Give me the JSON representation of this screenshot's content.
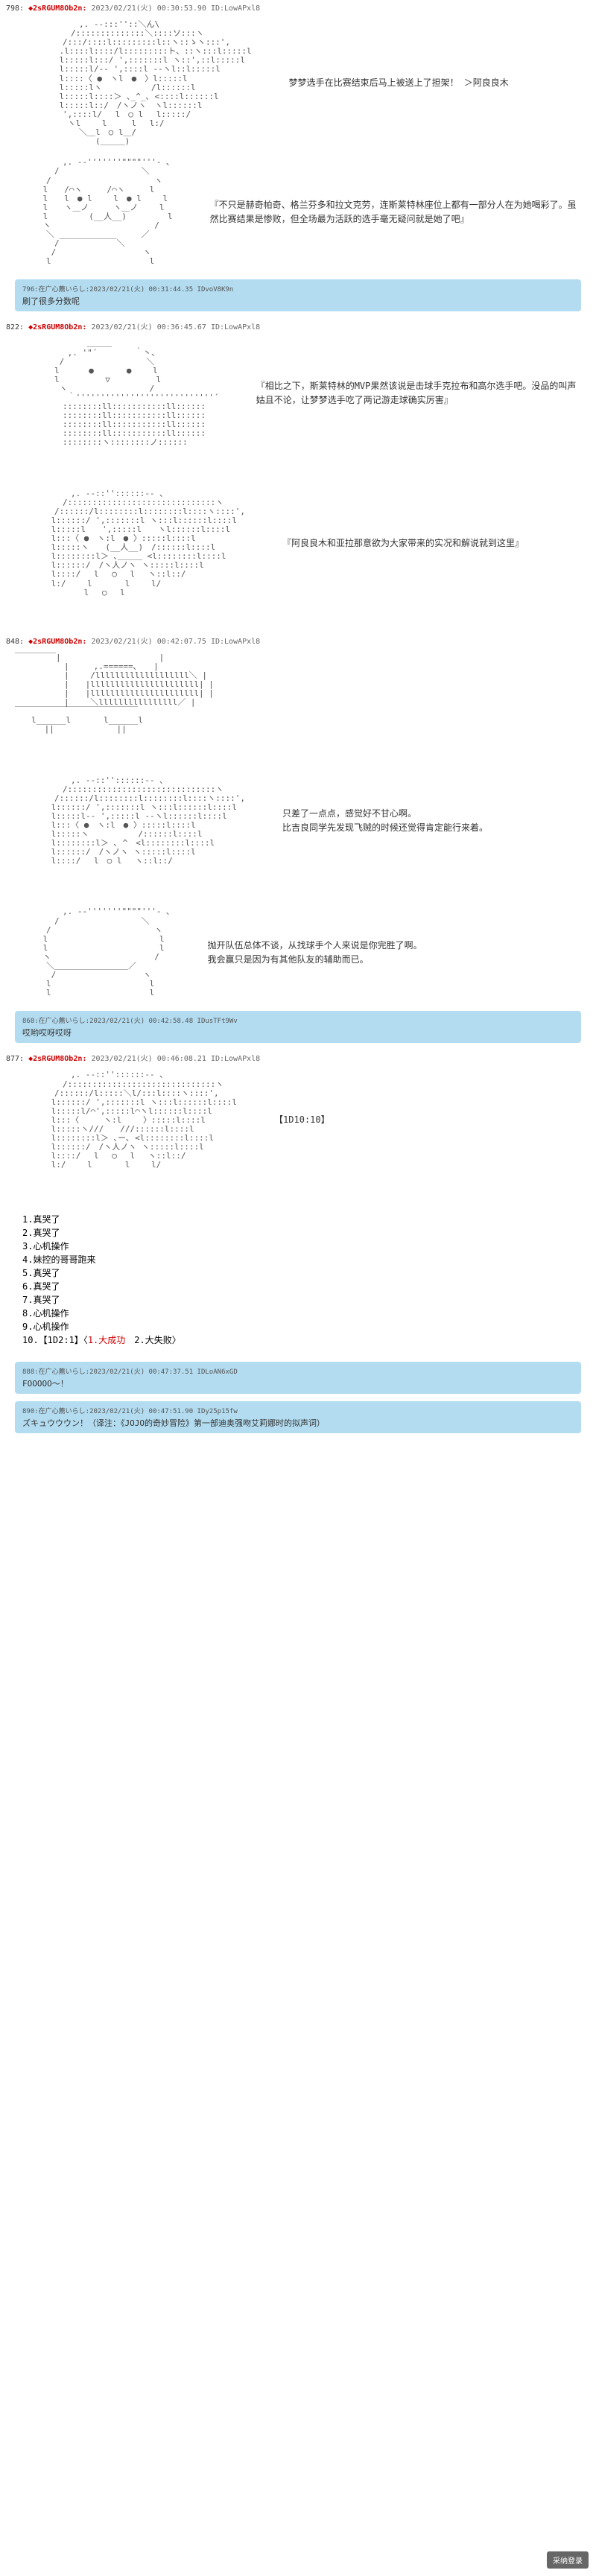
{
  "posts": [
    {
      "num": "798:",
      "id": "◆2sRGUM8Ob2n:",
      "ts": "2023/02/21(火) 00:30:53.90 ID:LowAPxl8",
      "aa": "　　　　　　,. -‐:::''::＼ん\\\n　　　　　/::::::::::::::＼::::ソ:::ヽ\n　　　　/:::/::::l:::::::::l::ヽ::ゝヽ:::',\n　　　 .l::::l::::/l:::::::::ト、::ヽ:::l:::::l\n　　　 l:::::l:::/ ',:::::::l ヽ::',::l:::::l\n　　　 l:::::l/‐- ',::::l -‐ヽl::l:::::l\n　　　 l::::〈 ●　ヽl　●　〉l:::::l\n　　　 l:::::lヽ　　　　　　/l::::::l\n　　　 l:::::l::::＞ ､_^_､ <::::l::::::l\n　　　 l:::::l::/　/ヽノヽ　ヽl::::::l\n　　　　',::::l/　 l　○ l　 l:::::/\n　　　　 ヽl　　 l　　　l　 l:/\n　　　　　　＼＿l　○ l＿/\n　　　　　　　　(＿＿＿)",
      "text": "梦梦选手在比赛结束后马上被送上了担架！ ＞阿良良木"
    },
    {
      "aa": "　　　　,. -‐'''''''\"\"\"\"'''- ､\n　　　/　　　　　　　　　　＼\n　　/　　　　　　　　　　　　 ヽ\n　 l　　/⌒ヽ　　　/⌒ヽ　　　l\n　 l　　l　● l　　 l　● l　　 l\n　 l　　ヽ＿ノ　　　ヽ＿ノ　　 l\n　 l　　　　　(__人__)　　　　　l\n　 ヽ　　　　　　　　　　　　 /\n　　＼　　　　　　　　　　 ／\n　　　/￣￣￣￣￣￣￣＼\n　　 /　　　　　　　　　　 ヽ\n　　l　　　　　　　　　　　　l",
      "text": "『不只是赫奇帕奇、格兰芬多和拉文克劳，连斯莱特林座位上都有一部分人在为她喝彩了。虽然比赛结果是惨败，但全场最为活跃的选手毫无疑问就是她了吧』"
    }
  ],
  "reply1": {
    "header": "796:在广心薦いらし:2023/02/21(火) 00:31:44.35 IDvoV8K9n",
    "text": "刷了很多分数呢"
  },
  "post2_header": {
    "num": "822:",
    "id": "◆2sRGUM8Ob2n:",
    "ts": "2023/02/21(火) 00:36:45.67 ID:LowAPxl8"
  },
  "post2_blocks": [
    {
      "aa": "　　　　　　　＿＿＿\n　　　 　,. '\"´　　　　 ｀丶、\n　　　 /　　　　　　　　　　＼\n　　　l　　　 ●　　　　●　　 l\n　　　l　　　　　 ▽　　　　　 l\n　　　 ヽ　　　　　　　　　　/\n　　　　 ｀''''''''''''''''''''''''''''´\n　　　　::::::::ll:::::::::::ll::::::\n　　　　::::::::ll:::::::::::ll::::::\n　　　　::::::::ll:::::::::::ll::::::\n　　　　::::::::ll:::::::::::ll::::::\n　　　　::::::::ヽ::::::::ノ::::::",
      "text": "『相比之下，斯莱特林的MVP果然该说是击球手克拉布和高尔选手吧。没品的叫声姑且不论，让梦梦选手吃了两记游走球确实厉害』"
    },
    {
      "aa": "　　　　　,. -‐::''::::::‐- ､\n　　　　/::::::::::::::::::::::::::::::ヽ\n　　　/::::::/l::::::::l::::::::l::::ヽ::::',\n　　 l::::::/ ',:::::::l ヽ:::l::::::l::::l\n　　 l:::::l　　',:::::l　　ヽl::::::l::::l\n　　 l:::〈 ●　ヽ:l　● 〉:::::l::::l\n　　 l:::::ヽ　　(__人__)　/::::::l::::l\n　　 l::::::::l＞ ､＿＿＿ <l::::::::l::::l\n　　 l::::::/　/ヽ人ノヽ ヽ:::::l::::l\n　　 l::::/　 l　 ○　 l　 ヽ::l::/\n　　 l:/　　 l　　　　l　　 l/\n　　　　　　 l　 ○　 l",
      "text": "『阿良良木和亚拉那意欲为大家带来的实况和解说就到这里』"
    }
  ],
  "post3_header": {
    "num": "848:",
    "id": "◆2sRGUM8Ob2n:",
    "ts": "2023/02/21(火) 00:42:07.75 ID:LowAPxl8"
  },
  "post3_blocks": [
    {
      "aa": "￣￣￣￣￣|　　　　　　　　　　　　|\n　　　　　　|　　　,.======､　　|\n　　　　　　|　　 /lllllllllllllllllll＼ |\n　　　　　　|　　|llllllllllllllllllllll| |\n　　　　　　|　　|llllllllllllllllllllll| |\n　　　　　　|　　 ＼llllllllllllllll／ |\n￣￣￣￣￣￣￣￣￣￣￣￣￣￣￣\n　　l______l　　　　l______l\n　　　 ||　　　　　　　 ||",
      "text": ""
    },
    {
      "aa": "　　　　　,. -‐::''::::::‐- ､\n　　　　/::::::::::::::::::::::::::::::ヽ\n　　　/::::::/l::::::::l::::::::l::::ヽ::::',\n　　 l::::::/ ',:::::::l ヽ:::l::::::l::::l\n　　 l:::::l-‐ ',:::::l ‐-ヽl::::::l::::l\n　　 l:::〈 ●　ヽ:l　● 〉:::::l::::l\n　　 l:::::ヽ　　　　　　/::::::l::::l\n　　 l::::::::l＞ ､ ^　<l::::::::l::::l\n　　 l::::::/　/ヽノヽ ヽ:::::l::::l\n　　 l::::/　 l　○ l　 ヽ::l::/",
      "text": "只差了一点点，感觉好不甘心啊。\n比吉良同学先发现飞贼的时候还觉得肯定能行来着。"
    },
    {
      "aa": "　　　　,. -‐'''''''\"\"\"\"'''- ､\n　　　/　　　　　　　　　　＼\n　　/　　　　　　　　　　　　 ヽ\n　 l　　　　　　　　　　　　　 l\n　 l　　　　　　　　　　　　　 l\n　 ヽ　　　　　　　　　　　　 /\n　　＼＿＿＿＿＿＿＿＿＿／\n　　 /　　　　　　　　　　 ヽ\n　　l　　　　　　　　　　　　l\n　　l　　　　　　　　　　　　l",
      "text": "抛开队伍总体不谈，从找球手个人来说是你完胜了啊。\n我会赢只是因为有其他队友的辅助而已。"
    }
  ],
  "reply2": {
    "header": "868:在广心薦いらし:2023/02/21(火) 00:42:58.48 IDusTFt9Wv",
    "text": "哎哟哎呀哎呀"
  },
  "post4_header": {
    "num": "877:",
    "id": "◆2sRGUM8Ob2n:",
    "ts": "2023/02/21(火) 00:46:08.21 ID:LowAPxl8"
  },
  "post4_block": {
    "aa": "　　　　　,. -‐::''::::::‐- ､\n　　　　/::::::::::::::::::::::::::::::ヽ\n　　　/::::::/l:::::＼l/:::l::::ヽ::::',\n　　 l::::::/ ',:::::::l ヽ:::l::::::l::::l\n　　 l:::::l/⌒',:::::l⌒ヽl::::::l::::l\n　　 l:::〈　　　ヽ:l　　 〉:::::l::::l\n　　 l:::::ヽ///　　///::::::l::::l\n　　 l::::::::l＞ ､ー､ <l::::::::l::::l\n　　 l::::::/　/ヽ人ノヽ ヽ:::::l::::l\n　　 l::::/　 l　 ○　 l　 ヽ::l::/\n　　 l:/　　 l　　　　l　　 l/",
    "text": "【1D10:10】"
  },
  "dice": {
    "lines": [
      "1.真哭了",
      "2.真哭了",
      "3.心机操作",
      "4.妹控的哥哥跑来",
      "5.真哭了",
      "6.真哭了",
      "7.真哭了",
      "8.心机操作",
      "9.心机操作"
    ],
    "last": "10.【1D2:1】〈",
    "opt1": "1.大成功",
    "opt2": "　2.大失败〉"
  },
  "reply3": {
    "header": "888:在广心薦いらし:2023/02/21(火) 00:47:37.51 IDLoAN6xGD",
    "text": "FOOOOO～！"
  },
  "reply4": {
    "header": "890:在广心薦いらし:2023/02/21(火) 00:47:51.90 IDy25p15fw",
    "text": "ズキュウウウン！（译注：《JOJO的奇妙冒险》第一部迪奥强吻艾莉娜时的拟声词）"
  },
  "footer": "采纳登录"
}
